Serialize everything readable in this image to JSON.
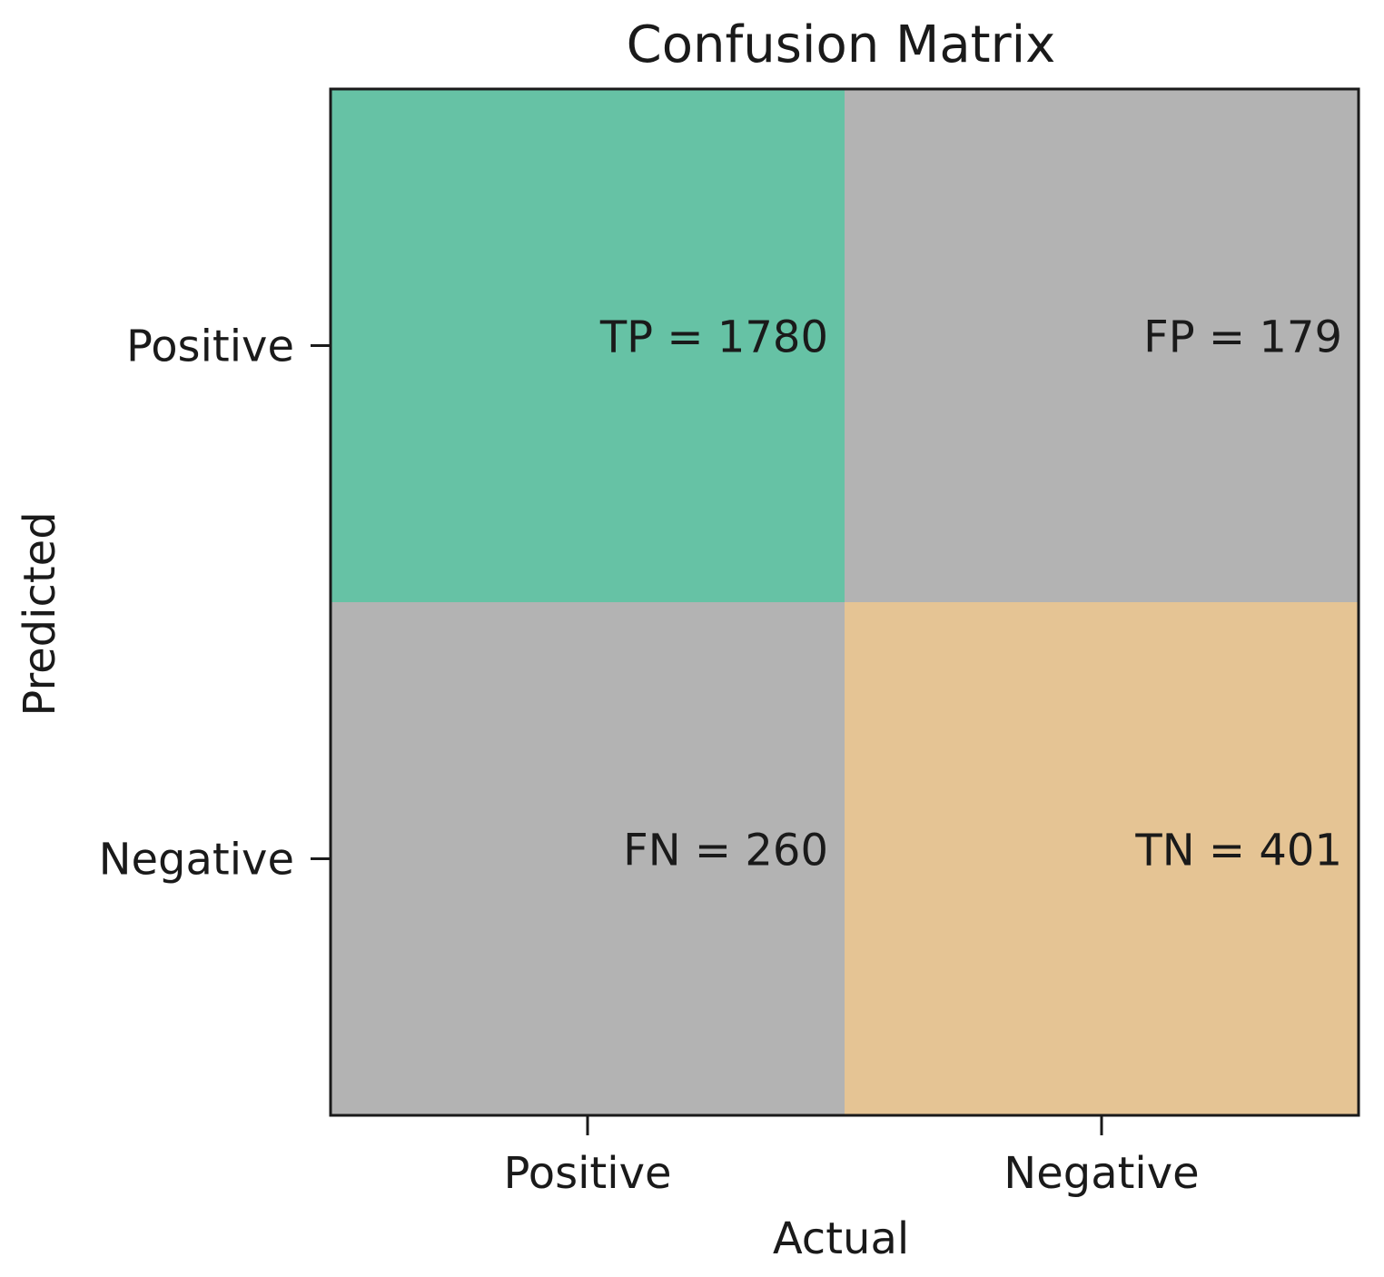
{
  "chart_data": {
    "type": "heatmap",
    "title": "Confusion Matrix",
    "xlabel": "Actual",
    "ylabel": "Predicted",
    "x_categories": [
      "Positive",
      "Negative"
    ],
    "y_categories": [
      "Positive",
      "Negative"
    ],
    "cells": [
      {
        "row": 0,
        "col": 0,
        "label": "TP = 1780",
        "value": 1780,
        "color": "#66c2a5"
      },
      {
        "row": 0,
        "col": 1,
        "label": "FP = 179",
        "value": 179,
        "color": "#b3b3b3"
      },
      {
        "row": 1,
        "col": 0,
        "label": "FN = 260",
        "value": 260,
        "color": "#b3b3b3"
      },
      {
        "row": 1,
        "col": 1,
        "label": "TN = 401",
        "value": 401,
        "color": "#e5c494"
      }
    ],
    "grid": false,
    "legend": "none"
  }
}
